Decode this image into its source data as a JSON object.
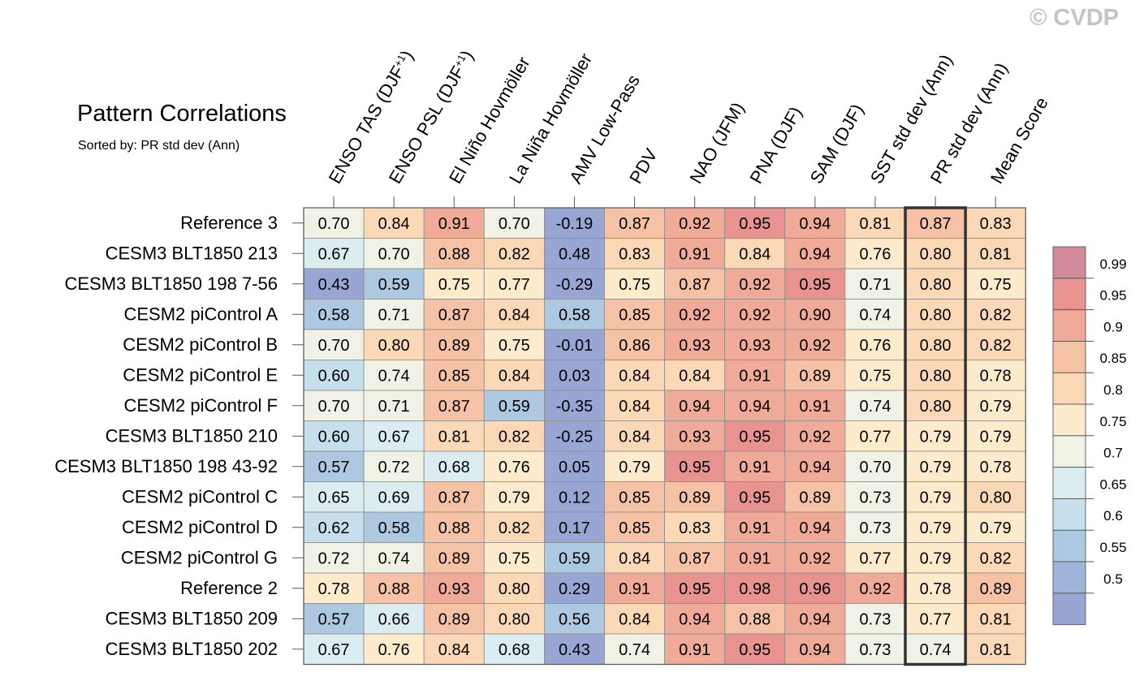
{
  "copyright": "© CVDP",
  "chart_data": {
    "type": "heatmap",
    "title": "Pattern Correlations",
    "subtitle": "Sorted by: PR std dev (Ann)",
    "columns": [
      {
        "label": "ENSO TAS (DJF",
        "sup": "+1",
        "suffix": ")"
      },
      {
        "label": "ENSO PSL (DJF",
        "sup": "+1",
        "suffix": ")"
      },
      {
        "label": "El Niño Hovmöller"
      },
      {
        "label": "La Niña Hovmöller"
      },
      {
        "label": "AMV Low-Pass"
      },
      {
        "label": "PDV"
      },
      {
        "label": "NAO (JFM)"
      },
      {
        "label": "PNA (DJF)"
      },
      {
        "label": "SAM (DJF)"
      },
      {
        "label": "SST std dev (Ann)"
      },
      {
        "label": "PR std dev (Ann)"
      },
      {
        "label": "Mean Score"
      }
    ],
    "highlight_column": "PR std dev (Ann)",
    "rows": [
      {
        "label": "Reference 3",
        "values": [
          "0.70",
          "0.84",
          "0.91",
          "0.70",
          "-0.19",
          "0.87",
          "0.92",
          "0.95",
          "0.94",
          "0.81",
          "0.87",
          "0.83"
        ]
      },
      {
        "label": "CESM3 BLT1850 213",
        "values": [
          "0.67",
          "0.70",
          "0.88",
          "0.82",
          "0.48",
          "0.83",
          "0.91",
          "0.84",
          "0.94",
          "0.76",
          "0.80",
          "0.81"
        ]
      },
      {
        "label": "CESM3 BLT1850 198 7-56",
        "values": [
          "0.43",
          "0.59",
          "0.75",
          "0.77",
          "-0.29",
          "0.75",
          "0.87",
          "0.92",
          "0.95",
          "0.71",
          "0.80",
          "0.75"
        ]
      },
      {
        "label": "CESM2 piControl A",
        "values": [
          "0.58",
          "0.71",
          "0.87",
          "0.84",
          "0.58",
          "0.85",
          "0.92",
          "0.92",
          "0.90",
          "0.74",
          "0.80",
          "0.82"
        ]
      },
      {
        "label": "CESM2 piControl B",
        "values": [
          "0.70",
          "0.80",
          "0.89",
          "0.75",
          "-0.01",
          "0.86",
          "0.93",
          "0.93",
          "0.92",
          "0.76",
          "0.80",
          "0.82"
        ]
      },
      {
        "label": "CESM2 piControl E",
        "values": [
          "0.60",
          "0.74",
          "0.85",
          "0.84",
          "0.03",
          "0.84",
          "0.84",
          "0.91",
          "0.89",
          "0.75",
          "0.80",
          "0.78"
        ]
      },
      {
        "label": "CESM2 piControl F",
        "values": [
          "0.70",
          "0.71",
          "0.87",
          "0.59",
          "-0.35",
          "0.84",
          "0.94",
          "0.94",
          "0.91",
          "0.74",
          "0.80",
          "0.79"
        ]
      },
      {
        "label": "CESM3 BLT1850 210",
        "values": [
          "0.60",
          "0.67",
          "0.81",
          "0.82",
          "-0.25",
          "0.84",
          "0.93",
          "0.95",
          "0.92",
          "0.77",
          "0.79",
          "0.79"
        ]
      },
      {
        "label": "CESM3 BLT1850 198 43-92",
        "values": [
          "0.57",
          "0.72",
          "0.68",
          "0.76",
          "0.05",
          "0.79",
          "0.95",
          "0.91",
          "0.94",
          "0.70",
          "0.79",
          "0.78"
        ]
      },
      {
        "label": "CESM2 piControl C",
        "values": [
          "0.65",
          "0.69",
          "0.87",
          "0.79",
          "0.12",
          "0.85",
          "0.89",
          "0.95",
          "0.89",
          "0.73",
          "0.79",
          "0.80"
        ]
      },
      {
        "label": "CESM2 piControl D",
        "values": [
          "0.62",
          "0.58",
          "0.88",
          "0.82",
          "0.17",
          "0.85",
          "0.83",
          "0.91",
          "0.94",
          "0.73",
          "0.79",
          "0.79"
        ]
      },
      {
        "label": "CESM2 piControl G",
        "values": [
          "0.72",
          "0.74",
          "0.89",
          "0.75",
          "0.59",
          "0.84",
          "0.87",
          "0.91",
          "0.92",
          "0.77",
          "0.79",
          "0.82"
        ]
      },
      {
        "label": "Reference 2",
        "values": [
          "0.78",
          "0.88",
          "0.93",
          "0.80",
          "0.29",
          "0.91",
          "0.95",
          "0.98",
          "0.96",
          "0.92",
          "0.78",
          "0.89"
        ]
      },
      {
        "label": "CESM3 BLT1850 209",
        "values": [
          "0.57",
          "0.66",
          "0.89",
          "0.80",
          "0.56",
          "0.84",
          "0.94",
          "0.88",
          "0.94",
          "0.73",
          "0.77",
          "0.81"
        ]
      },
      {
        "label": "CESM3 BLT1850 202",
        "values": [
          "0.67",
          "0.76",
          "0.84",
          "0.68",
          "0.43",
          "0.74",
          "0.91",
          "0.95",
          "0.94",
          "0.73",
          "0.74",
          "0.81"
        ]
      }
    ],
    "colorbar": {
      "levels": [
        "0.99",
        "0.95",
        "0.9",
        "0.85",
        "0.8",
        "0.75",
        "0.7",
        "0.65",
        "0.6",
        "0.55",
        "0.5"
      ],
      "colors": [
        "#d38b9b",
        "#e8938f",
        "#f0aa98",
        "#f6c2a6",
        "#fbd8b6",
        "#fdebcc",
        "#f0f2e6",
        "#dcedf1",
        "#c5dfec",
        "#adc9e1",
        "#9fb6da",
        "#99a6d4"
      ]
    }
  }
}
